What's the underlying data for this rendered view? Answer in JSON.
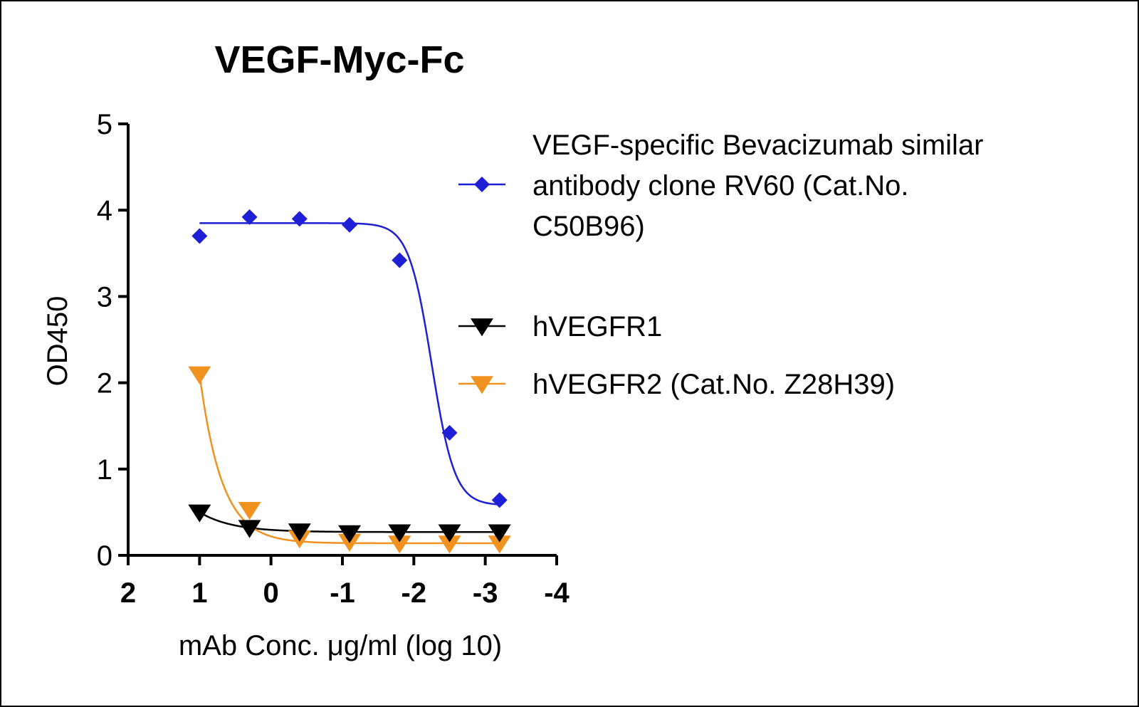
{
  "chart_data": {
    "type": "line",
    "title": "VEGF-Myc-Fc",
    "xlabel": "mAb Conc. μg/ml (log 10)",
    "ylabel": "OD450",
    "xlim": [
      2,
      -4
    ],
    "ylim": [
      0,
      5
    ],
    "x_ticks": [
      "2",
      "1",
      "0",
      "-1",
      "-2",
      "-3",
      "-4"
    ],
    "y_ticks": [
      "0",
      "1",
      "2",
      "3",
      "4",
      "5"
    ],
    "x_tick_values": [
      2,
      1,
      0,
      -1,
      -2,
      -3,
      -4
    ],
    "y_tick_values": [
      0,
      1,
      2,
      3,
      4,
      5
    ],
    "grid": false,
    "legend_position": "right",
    "series": [
      {
        "name": "VEGF-specific Bevacizumab similar antibody clone RV60 (Cat.No. C50B96)",
        "name_lines": [
          "VEGF-specific Bevacizumab similar",
          "antibody clone RV60 (Cat.No.",
          "C50B96)"
        ],
        "color": "#1f1fd6",
        "marker": "diamond",
        "x": [
          1.0,
          0.3,
          -0.4,
          -1.1,
          -1.8,
          -2.5,
          -3.2
        ],
        "y": [
          3.7,
          3.92,
          3.9,
          3.83,
          3.42,
          1.42,
          0.64
        ],
        "fit": "sigmoid"
      },
      {
        "name": "hVEGFR1",
        "name_lines": [
          "hVEGFR1"
        ],
        "color": "#000000",
        "marker": "triangle-down",
        "x": [
          1.0,
          0.3,
          -0.4,
          -1.1,
          -1.8,
          -2.5,
          -3.2
        ],
        "y": [
          0.5,
          0.32,
          0.28,
          0.26,
          0.27,
          0.27,
          0.27
        ],
        "fit": "decay"
      },
      {
        "name": "hVEGFR2 (Cat.No. Z28H39)",
        "name_lines": [
          "hVEGFR2 (Cat.No. Z28H39)"
        ],
        "color": "#f0921f",
        "marker": "triangle-down",
        "x": [
          1.0,
          0.3,
          -0.4,
          -1.1,
          -1.8,
          -2.5,
          -3.2
        ],
        "y": [
          2.1,
          0.53,
          0.2,
          0.16,
          0.14,
          0.14,
          0.14
        ],
        "fit": "decay"
      }
    ]
  }
}
